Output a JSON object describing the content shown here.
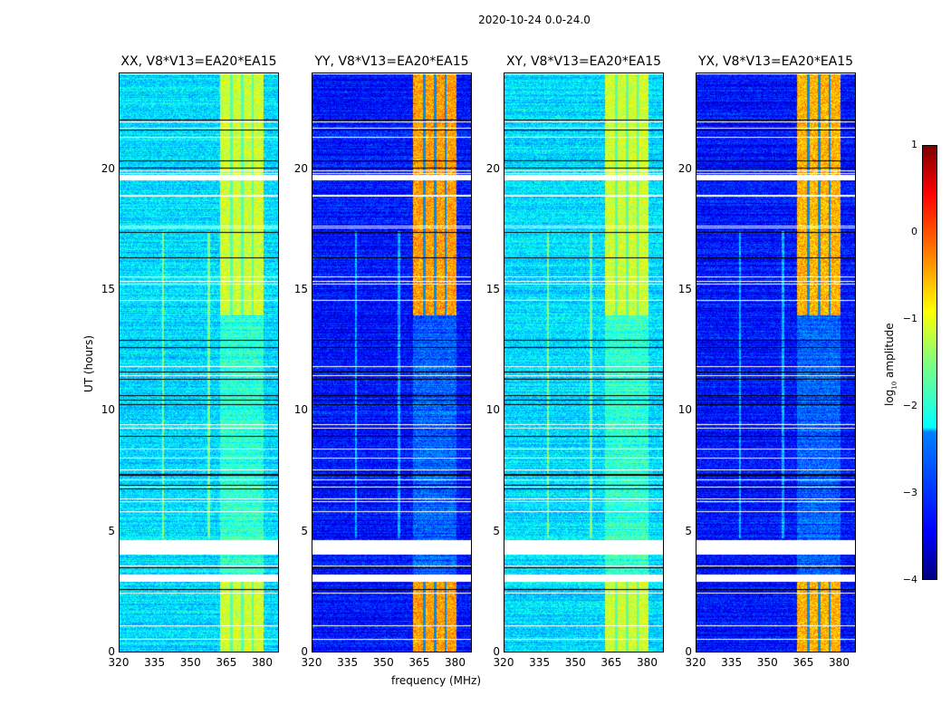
{
  "chart_data": {
    "type": "heatmap",
    "title": "2020-10-24 0.0-24.0",
    "xlabel": "frequency (MHz)",
    "ylabel": "UT (hours)",
    "xlim": [
      320,
      387
    ],
    "ylim": [
      0,
      24
    ],
    "xticks": [
      "320",
      "335",
      "350",
      "365",
      "380"
    ],
    "xtick_values": [
      320,
      335,
      350,
      365,
      380
    ],
    "yticks": [
      "0",
      "5",
      "10",
      "15",
      "20"
    ],
    "ytick_values": [
      0,
      5,
      10,
      15,
      20
    ],
    "colorbar": {
      "label_main": "log",
      "label_sub": "10",
      "label_rest": " amplitude",
      "ticks": [
        "1",
        "0",
        "−1",
        "−2",
        "−3",
        "−4"
      ],
      "tick_values": [
        1,
        0,
        -1,
        -2,
        -3,
        -4
      ],
      "colormap": "jet",
      "range": [
        -4,
        1
      ]
    },
    "flagged_hours": [
      [
        3.0,
        3.3
      ],
      [
        4.1,
        4.7
      ],
      [
        19.6,
        19.8
      ]
    ],
    "rfi_band_mhz": [
      362,
      380
    ],
    "panels": [
      {
        "title": "XX, V8*V13=EA20*EA15",
        "background": -2.3,
        "band": -1.1,
        "lines_mhz": [
          338,
          357
        ]
      },
      {
        "title": "YY, V8*V13=EA20*EA15",
        "background": -3.3,
        "band": -0.4,
        "lines_mhz": [
          338,
          356
        ]
      },
      {
        "title": "XY, V8*V13=EA20*EA15",
        "background": -2.3,
        "band": -1.1,
        "lines_mhz": [
          338,
          356
        ]
      },
      {
        "title": "YX, V8*V13=EA20*EA15",
        "background": -3.3,
        "band": -0.5,
        "lines_mhz": [
          338,
          356
        ]
      }
    ]
  }
}
